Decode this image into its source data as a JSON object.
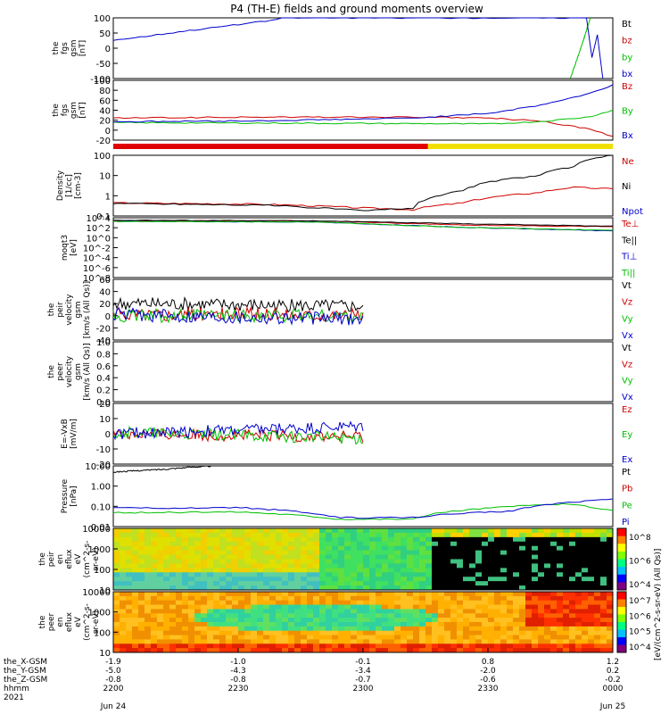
{
  "title": "P4 (TH-E) fields and ground moments overview",
  "chart_data": [
    {
      "type": "line",
      "panel": "fgs_gsm_zoom",
      "ylabel": [
        "the",
        "fgs",
        "gsm",
        "[nT]"
      ],
      "ylim": [
        -100,
        100
      ],
      "yticks": [
        "100",
        "50",
        "0",
        "-50",
        "-100"
      ],
      "series": [
        {
          "name": "Bt",
          "color": "#000000",
          "x": [],
          "values": []
        },
        {
          "name": "bz",
          "color": "#d00000",
          "x": [],
          "values": []
        },
        {
          "name": "by",
          "color": "#00c000",
          "x": [
            0.915,
            0.94,
            0.955
          ],
          "values": [
            -100,
            20,
            100
          ]
        },
        {
          "name": "bx",
          "color": "#0000cc",
          "x": [
            0,
            0.05,
            0.1,
            0.15,
            0.2,
            0.25,
            0.3,
            0.33,
            0.34,
            0.955,
            0.96,
            0.965,
            0.98
          ],
          "values": [
            27,
            36,
            47,
            58,
            68,
            78,
            88,
            96,
            100,
            100,
            -100,
            100,
            -100
          ]
        }
      ]
    },
    {
      "type": "line",
      "panel": "fgs_gsm",
      "ylabel": [
        "the",
        "fgs",
        "gsm",
        "[nT]"
      ],
      "ylim": [
        -30,
        100
      ],
      "yticks": [
        "100",
        "80",
        "60",
        "40",
        "20",
        "0",
        "-20"
      ],
      "series": [
        {
          "name": "Bz",
          "color": "#d00000",
          "x": [
            0,
            0.3,
            0.6,
            0.75,
            0.85,
            0.95,
            1.0
          ],
          "values": [
            18,
            20,
            20,
            18,
            12,
            -5,
            -22
          ]
        },
        {
          "name": "By",
          "color": "#00c000",
          "x": [
            0,
            0.3,
            0.6,
            0.75,
            0.85,
            0.95,
            1.0
          ],
          "values": [
            8,
            7,
            6,
            5,
            10,
            20,
            35
          ]
        },
        {
          "name": "Bx",
          "color": "#0000cc",
          "x": [
            0,
            0.3,
            0.6,
            0.75,
            0.85,
            0.95,
            1.0
          ],
          "values": [
            10,
            12,
            18,
            28,
            45,
            70,
            90
          ]
        }
      ]
    },
    {
      "type": "line",
      "panel": "density",
      "ylabel": [
        "Density",
        "[1/cc]",
        "[cm-3]"
      ],
      "scale": "log",
      "ylim": [
        0.05,
        200
      ],
      "yticks": [
        "100",
        "10",
        "1",
        "0.1"
      ],
      "series": [
        {
          "name": "Ne",
          "color": "#d00000",
          "x": [
            0,
            0.3,
            0.5,
            0.6,
            0.7,
            0.85,
            0.92,
            1.0
          ],
          "values": [
            0.3,
            0.25,
            0.15,
            0.12,
            0.3,
            1.2,
            2.5,
            2.0
          ]
        },
        {
          "name": "Ni",
          "color": "#000000",
          "x": [
            0,
            0.3,
            0.5,
            0.6,
            0.7,
            0.85,
            0.92,
            1.0
          ],
          "values": [
            0.28,
            0.22,
            0.1,
            0.15,
            1.5,
            12,
            40,
            200
          ]
        },
        {
          "name": "Npot",
          "color": "#0000cc",
          "x": [],
          "values": []
        }
      ]
    },
    {
      "type": "line",
      "panel": "moments_temperature",
      "ylabel": [
        "moqt3",
        "[eV]"
      ],
      "ylim": [
        null,
        null
      ],
      "yticks": [
        "10^4",
        "10^2",
        "10^0",
        "10^-2",
        "10^-4",
        "10^-6",
        "10^-8"
      ],
      "series": [
        {
          "name": "Te⊥",
          "color": "#d00000",
          "x": [
            0,
            0.4,
            0.7,
            1.0
          ],
          "values": [
            0.95,
            0.95,
            0.88,
            0.85
          ]
        },
        {
          "name": "Te||",
          "color": "#000000",
          "x": [
            0,
            0.4,
            0.7,
            1.0
          ],
          "values": [
            0.96,
            0.95,
            0.9,
            0.86
          ]
        },
        {
          "name": "Ti⊥",
          "color": "#0000cc",
          "x": [
            0,
            0.4,
            0.7,
            1.0
          ],
          "values": [
            0.94,
            0.93,
            0.84,
            0.78
          ]
        },
        {
          "name": "Ti||",
          "color": "#00c000",
          "x": [
            0,
            0.4,
            0.7,
            1.0
          ],
          "values": [
            0.94,
            0.93,
            0.84,
            0.79
          ]
        }
      ]
    },
    {
      "type": "line",
      "panel": "peir_velocity",
      "ylabel": [
        "the",
        "peir",
        "velocity",
        "gsm",
        "[km/s (All Qs)]"
      ],
      "ylim": [
        -40,
        60
      ],
      "yticks": [
        "60",
        "40",
        "20",
        "0",
        "-20",
        "-40"
      ],
      "series": [
        {
          "name": "Vt",
          "color": "#000000",
          "x": [
            0,
            0.5
          ],
          "values": [
            20,
            15
          ]
        },
        {
          "name": "Vz",
          "color": "#d00000",
          "x": [
            0,
            0.5
          ],
          "values": [
            3,
            2
          ]
        },
        {
          "name": "Vy",
          "color": "#00c000",
          "x": [
            0,
            0.5
          ],
          "values": [
            0,
            0
          ]
        },
        {
          "name": "Vx",
          "color": "#0000cc",
          "x": [
            0,
            0.5
          ],
          "values": [
            2,
            -5
          ]
        }
      ]
    },
    {
      "type": "line",
      "panel": "peer_velocity",
      "ylabel": [
        "the",
        "peer",
        "velocity",
        "gsm",
        "[km/s (All Qs)]"
      ],
      "ylim": [
        0,
        1
      ],
      "yticks": [
        "1.0",
        "0.8",
        "0.6",
        "0.4",
        "0.2",
        "0.0"
      ],
      "series": [
        {
          "name": "Vt",
          "color": "#000000",
          "x": [],
          "values": []
        },
        {
          "name": "Vz",
          "color": "#d00000",
          "x": [],
          "values": []
        },
        {
          "name": "Vy",
          "color": "#00c000",
          "x": [],
          "values": []
        },
        {
          "name": "Vx",
          "color": "#0000cc",
          "x": [],
          "values": []
        }
      ]
    },
    {
      "type": "line",
      "panel": "efield",
      "ylabel": [
        "E=-VxB",
        "[mV/m]"
      ],
      "ylim": [
        -20,
        20
      ],
      "yticks": [
        "20",
        "10",
        "0",
        "-10",
        "-20"
      ],
      "series": [
        {
          "name": "Ez",
          "color": "#d00000",
          "x": [
            0,
            0.5
          ],
          "values": [
            0,
            -2
          ]
        },
        {
          "name": "Ey",
          "color": "#00c000",
          "x": [
            0,
            0.5
          ],
          "values": [
            1,
            -3
          ]
        },
        {
          "name": "Ex",
          "color": "#0000cc",
          "x": [
            0,
            0.5
          ],
          "values": [
            0,
            5
          ]
        }
      ]
    },
    {
      "type": "line",
      "panel": "pressure",
      "ylabel": [
        "Pressure",
        "[nPa]"
      ],
      "scale": "log",
      "ylim": [
        0.004,
        30
      ],
      "yticks": [
        "10.00",
        "1.00",
        "0.10",
        "0.01"
      ],
      "series": [
        {
          "name": "Pt",
          "color": "#000000",
          "x": [
            0,
            0.1,
            0.2
          ],
          "values": [
            12,
            18,
            30
          ]
        },
        {
          "name": "Pb",
          "color": "#d00000",
          "x": [],
          "values": []
        },
        {
          "name": "Pe",
          "color": "#00c000",
          "x": [
            0,
            0.25,
            0.45,
            0.6,
            0.9,
            1.0
          ],
          "values": [
            0.03,
            0.035,
            0.012,
            0.012,
            0.11,
            0.04
          ]
        },
        {
          "name": "Pi",
          "color": "#0000cc",
          "x": [
            0,
            0.25,
            0.45,
            0.6,
            0.8,
            1.0
          ],
          "values": [
            0.06,
            0.065,
            0.015,
            0.015,
            0.04,
            0.22
          ]
        }
      ]
    },
    {
      "type": "heatmap",
      "panel": "peir_spectrogram",
      "ylabel": [
        "the",
        "peir",
        "en",
        "eflux",
        "eV",
        "(cm^2-s-",
        "sr-eV)"
      ],
      "yticks": [
        "10000",
        "1000",
        "100",
        "10"
      ],
      "colorbar_ticks": [
        "10^8",
        "10^6",
        "10^4"
      ]
    },
    {
      "type": "heatmap",
      "panel": "peer_spectrogram",
      "ylabel": [
        "the",
        "peer",
        "en",
        "eflux",
        "eV",
        "(cm^2-s-",
        "sr-eV)"
      ],
      "yticks": [
        "10000",
        "1000",
        "100",
        "10"
      ],
      "colorbar_ticks": [
        "10^7",
        "10^6",
        "10^5",
        "10^4"
      ]
    }
  ],
  "colorbar_label": "[eV/(cm^2-s-sr-eV) (All Qs)]",
  "x_axis": {
    "tick_labels": [
      {
        "X": "-1.9",
        "Y": "-5.0",
        "Z": "-0.8",
        "hhmm": "2200"
      },
      {
        "X": "-1.0",
        "Y": "-4.3",
        "Z": "-0.8",
        "hhmm": "2230"
      },
      {
        "X": "-0.1",
        "Y": "-3.4",
        "Z": "-0.7",
        "hhmm": "2300"
      },
      {
        "X": "0.8",
        "Y": "-2.0",
        "Z": "-0.6",
        "hhmm": "2330"
      },
      {
        "X": "1.2",
        "Y": "0.2",
        "Z": "-0.2",
        "hhmm": "0000"
      }
    ],
    "row_labels": [
      "the_X-GSM",
      "the_Y-GSM",
      "the_Z-GSM",
      "hhmm",
      "2021"
    ],
    "date_start": "Jun 24",
    "date_end": "Jun 25"
  }
}
